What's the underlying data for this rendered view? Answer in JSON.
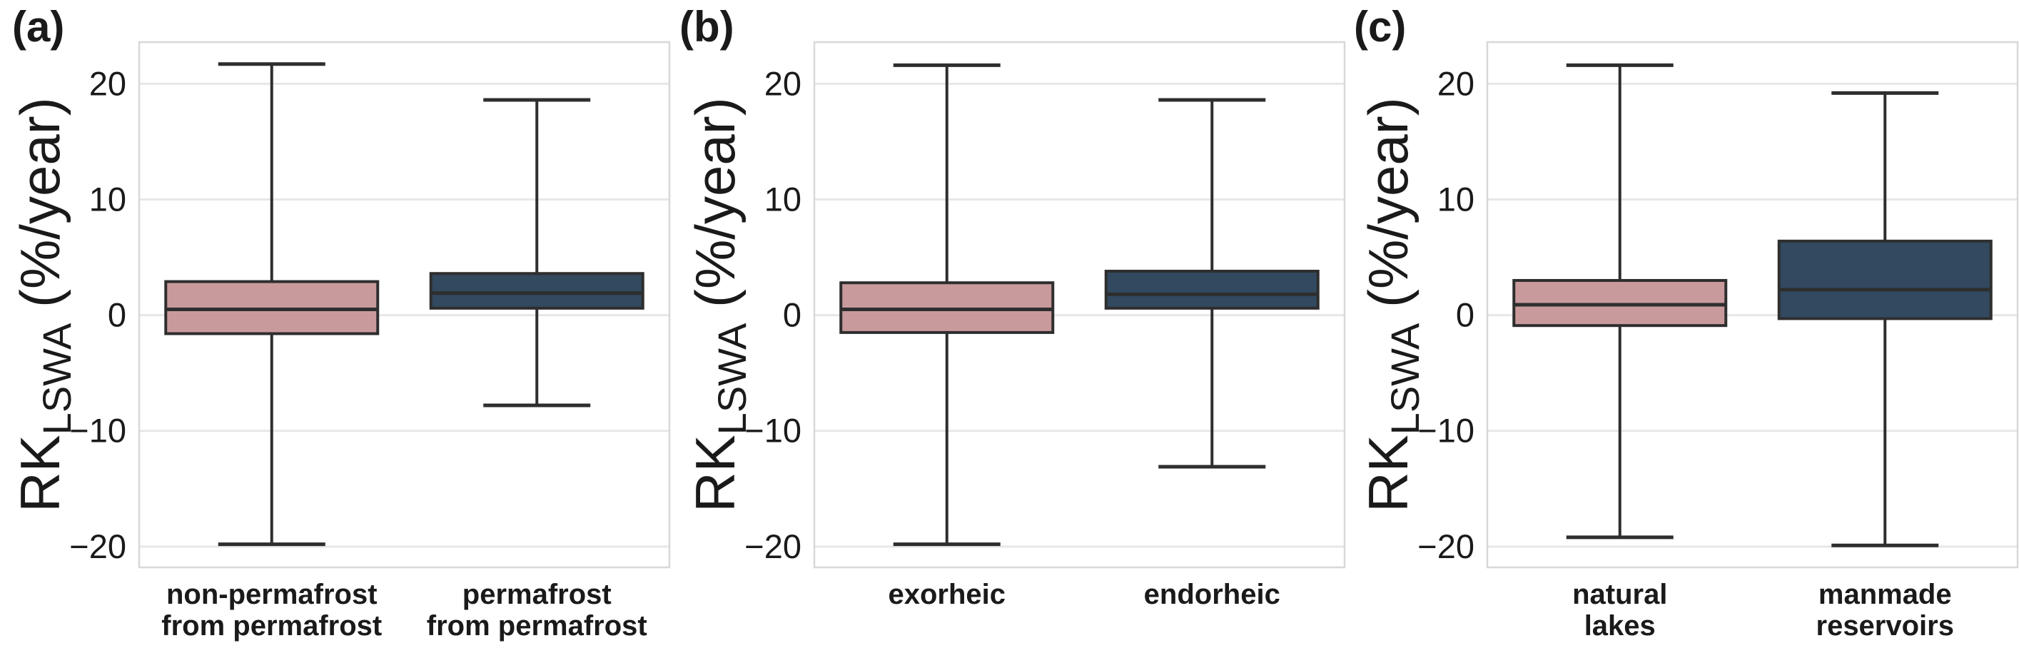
{
  "chart_data": {
    "type": "boxplot",
    "title": "",
    "ylabel": {
      "main": "RK",
      "subscript": "LSWA",
      "unit": " (%/year)"
    },
    "ylim": [
      -21.8,
      23.6
    ],
    "yticks": [
      -20,
      -10,
      0,
      10,
      20
    ],
    "ytick_labels": [
      "−20",
      "−10",
      "0",
      "10",
      "20"
    ],
    "grid": true,
    "legend": "none",
    "colors": {
      "pink_fill": "#c99a9c",
      "blue_fill": "#32495f",
      "line": "#2e2e2e",
      "grid_line": "#e7e7e7",
      "spine": "#d8d8d8",
      "text": "#1a1a1a",
      "background": "#ffffff"
    },
    "panels": [
      {
        "label": "(a)",
        "boxes": [
          {
            "category_lines": [
              "non-permafrost",
              "from permafrost"
            ],
            "color_key": "pink_fill",
            "whisker_low": -19.8,
            "q1": -1.6,
            "median": 0.5,
            "q3": 2.9,
            "whisker_high": 21.7
          },
          {
            "category_lines": [
              "permafrost",
              "from permafrost"
            ],
            "color_key": "blue_fill",
            "whisker_low": -7.8,
            "q1": 0.6,
            "median": 1.9,
            "q3": 3.6,
            "whisker_high": 18.6
          }
        ]
      },
      {
        "label": "(b)",
        "boxes": [
          {
            "category_lines": [
              "exorheic"
            ],
            "color_key": "pink_fill",
            "whisker_low": -19.8,
            "q1": -1.5,
            "median": 0.5,
            "q3": 2.8,
            "whisker_high": 21.6
          },
          {
            "category_lines": [
              "endorheic"
            ],
            "color_key": "blue_fill",
            "whisker_low": -13.1,
            "q1": 0.6,
            "median": 1.8,
            "q3": 3.8,
            "whisker_high": 18.6
          }
        ]
      },
      {
        "label": "(c)",
        "boxes": [
          {
            "category_lines": [
              "natural",
              "lakes"
            ],
            "color_key": "pink_fill",
            "whisker_low": -19.2,
            "q1": -0.9,
            "median": 0.9,
            "q3": 3.0,
            "whisker_high": 21.6
          },
          {
            "category_lines": [
              "manmade",
              "reservoirs"
            ],
            "color_key": "blue_fill",
            "whisker_low": -19.9,
            "q1": -0.3,
            "median": 2.2,
            "q3": 6.4,
            "whisker_high": 19.2
          }
        ]
      }
    ]
  }
}
